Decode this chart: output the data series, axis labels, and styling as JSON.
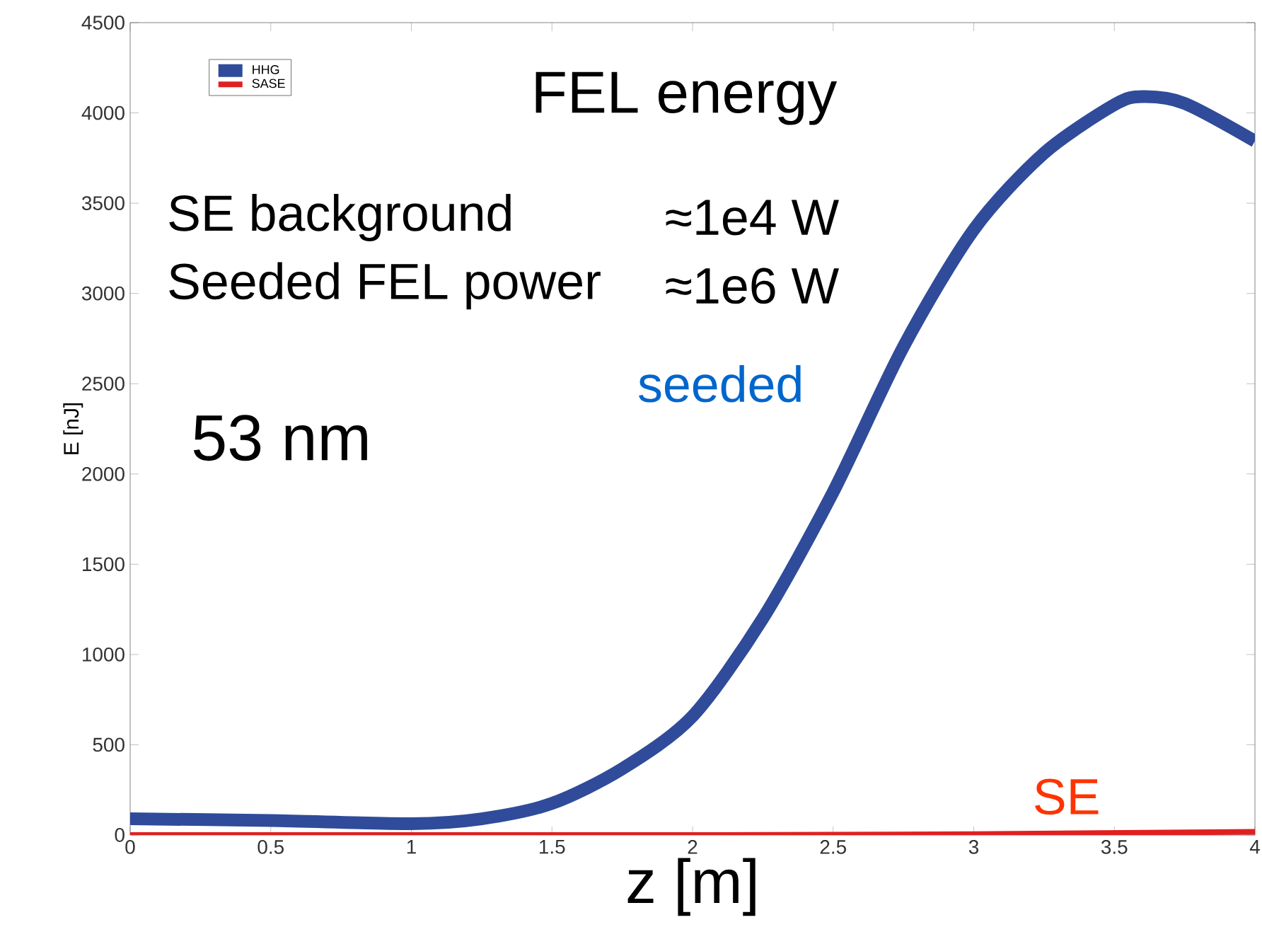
{
  "chart_data": {
    "type": "line",
    "title": "FEL energy",
    "xlabel": "z [m]",
    "ylabel": "E [nJ]",
    "xlim": [
      0,
      4
    ],
    "ylim": [
      0,
      4500
    ],
    "xticks": [
      0,
      0.5,
      1,
      1.5,
      2,
      2.5,
      3,
      3.5,
      4
    ],
    "yticks": [
      0,
      500,
      1000,
      1500,
      2000,
      2500,
      3000,
      3500,
      4000,
      4500
    ],
    "grid": false,
    "legend": "top left",
    "marker": "none",
    "line_style": "solid",
    "series": [
      {
        "name": "HHG",
        "color": "#2f4b9a",
        "x": [
          0,
          0.5,
          1,
          1.25,
          1.5,
          1.75,
          2,
          2.25,
          2.5,
          2.75,
          3,
          3.25,
          3.5,
          3.6,
          3.75,
          4
        ],
        "values": [
          90,
          80,
          63,
          90,
          175,
          367,
          658,
          1200,
          1900,
          2705,
          3353,
          3777,
          4045,
          4090,
          4053,
          3844
        ]
      },
      {
        "name": "SASE",
        "color": "#e02020",
        "x": [
          0,
          1,
          2,
          3,
          4
        ],
        "values": [
          0,
          0,
          0,
          5,
          18
        ]
      }
    ],
    "annotations": [
      "SE background",
      "≈1e4 W",
      "Seeded FEL power",
      "≈1e6 W",
      "53 nm",
      "seeded",
      "SE"
    ]
  }
}
